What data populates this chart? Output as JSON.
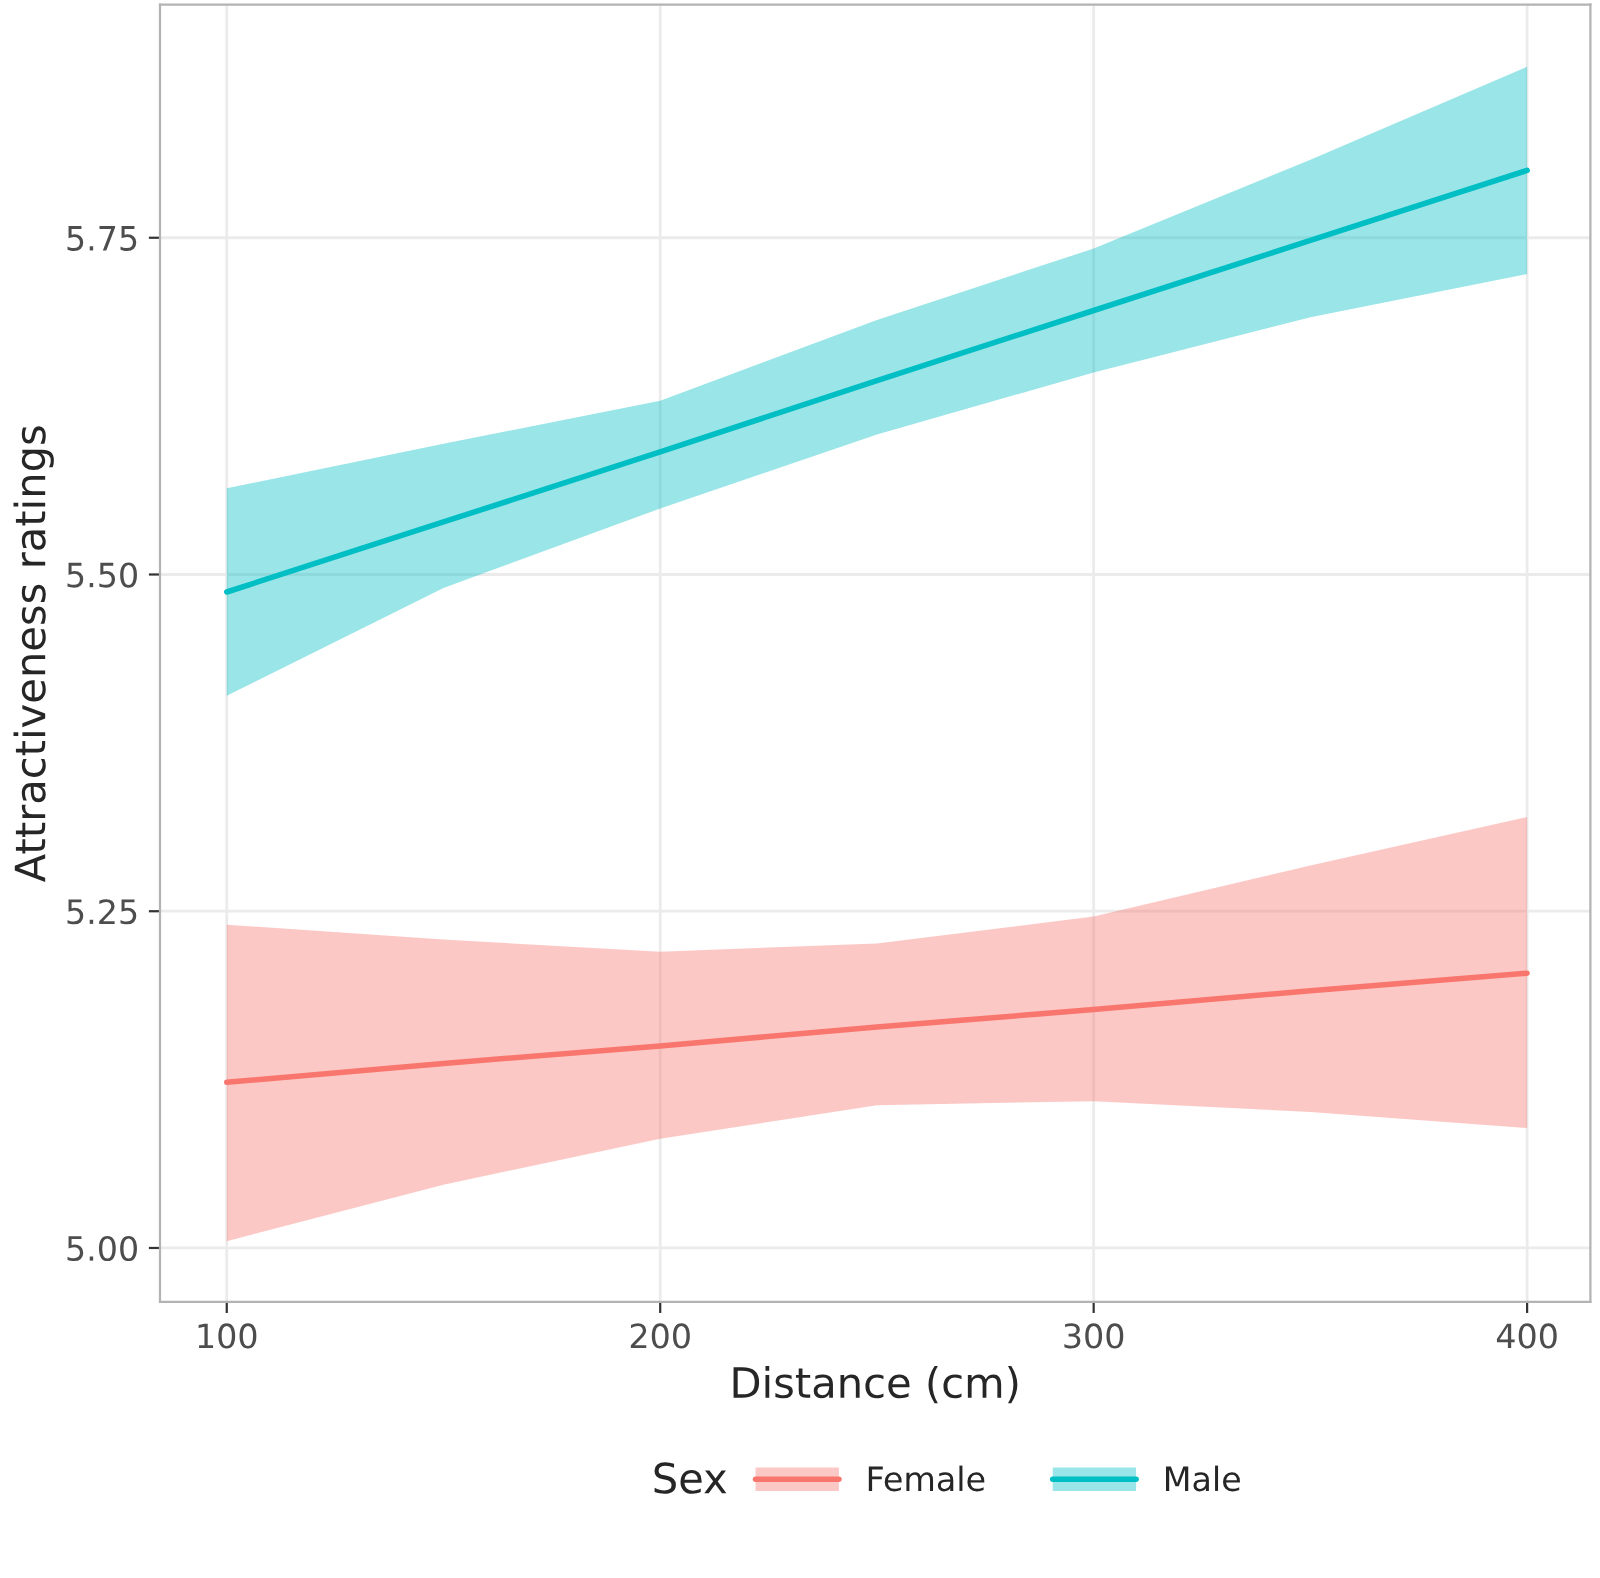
{
  "chart_data": {
    "type": "line",
    "xlabel": "Distance (cm)",
    "ylabel": "Attractiveness ratings",
    "legend_title": "Sex",
    "legend": "bottom",
    "grid": true,
    "xlim": [
      84.6,
      414.6
    ],
    "xticks": [
      100,
      200,
      300,
      400
    ],
    "ylim": [
      4.96,
      5.923
    ],
    "yticks": [
      {
        "value": 5.0,
        "label": "5.00"
      },
      {
        "value": 5.25,
        "label": "5.25"
      },
      {
        "value": 5.5,
        "label": "5.50"
      },
      {
        "value": 5.75,
        "label": "5.75"
      }
    ],
    "series": [
      {
        "name": "Female",
        "color": "#f8766d",
        "x": [
          100,
          150,
          200,
          250,
          300,
          350,
          400
        ],
        "values": [
          5.123,
          5.137,
          5.15,
          5.164,
          5.177,
          5.191,
          5.204
        ],
        "lower": [
          5.005,
          5.047,
          5.081,
          5.106,
          5.109,
          5.101,
          5.089
        ],
        "upper": [
          5.24,
          5.229,
          5.22,
          5.226,
          5.246,
          5.284,
          5.32
        ]
      },
      {
        "name": "Male",
        "color": "#00bfc4",
        "x": [
          100,
          150,
          200,
          250,
          300,
          350,
          400
        ],
        "values": [
          5.487,
          5.539,
          5.591,
          5.644,
          5.696,
          5.748,
          5.8
        ],
        "lower": [
          5.41,
          5.49,
          5.549,
          5.604,
          5.65,
          5.691,
          5.723
        ],
        "upper": [
          5.564,
          5.597,
          5.629,
          5.689,
          5.742,
          5.808,
          5.877
        ]
      }
    ]
  }
}
